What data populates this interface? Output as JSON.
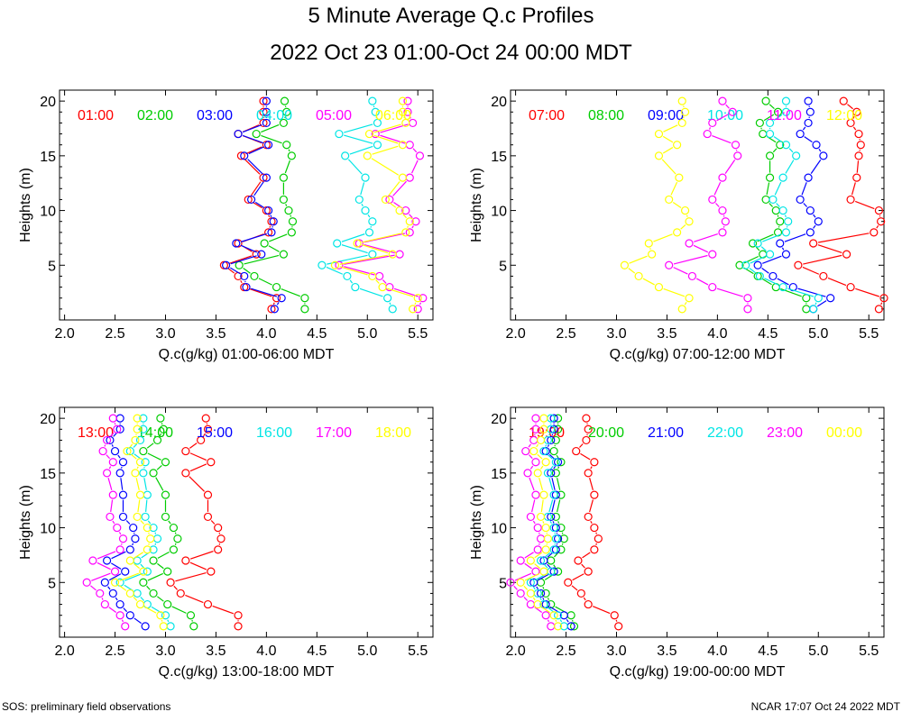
{
  "title": "5 Minute Average Q.c Profiles",
  "subtitle": "2022 Oct 23 01:00-Oct 24 00:00 MDT",
  "footer_left": "SOS: preliminary field observations",
  "footer_right": "NCAR 17:07 Oct 24 2022 MDT",
  "chart_data": {
    "type": "scatter",
    "ylabel": "Heights (m)",
    "xlim": [
      1.95,
      5.65
    ],
    "ylim": [
      0,
      21
    ],
    "xticks": [
      "2.0",
      "2.5",
      "3.0",
      "3.5",
      "4.0",
      "4.5",
      "5.0",
      "5.5"
    ],
    "yticks": [
      "5",
      "10",
      "15",
      "20"
    ],
    "heights": [
      1,
      2,
      3,
      4,
      5,
      6,
      7,
      8,
      9,
      10,
      11,
      13,
      15,
      16,
      17,
      18,
      19,
      20
    ],
    "colors": [
      "#ff0000",
      "#00cc00",
      "#0000ff",
      "#00e5e5",
      "#ff00ff",
      "#ffff00"
    ],
    "panels": [
      {
        "xlabel": "Q.c(g/kg) 01:00-06:00 MDT",
        "series": [
          {
            "name": "01:00",
            "values": [
              4.05,
              4.1,
              3.78,
              3.72,
              3.58,
              3.9,
              3.72,
              4.02,
              4.05,
              4.0,
              3.82,
              3.97,
              3.75,
              4.0,
              3.72,
              3.97,
              3.97,
              3.97
            ]
          },
          {
            "name": "02:00",
            "values": [
              4.38,
              4.38,
              4.1,
              3.88,
              3.73,
              4.17,
              3.98,
              4.25,
              4.26,
              4.22,
              4.17,
              4.17,
              4.25,
              4.2,
              3.9,
              4.17,
              4.2,
              4.18
            ]
          },
          {
            "name": "03:00",
            "values": [
              4.08,
              4.15,
              3.8,
              3.78,
              3.6,
              3.95,
              3.7,
              4.05,
              4.07,
              4.02,
              3.85,
              4.0,
              3.78,
              4.02,
              3.72,
              4.0,
              4.0,
              4.0
            ]
          },
          {
            "name": "04:00",
            "values": [
              5.25,
              5.2,
              4.88,
              4.8,
              4.55,
              5.05,
              4.7,
              5.02,
              5.05,
              4.98,
              4.92,
              4.98,
              4.78,
              5.1,
              4.72,
              5.1,
              5.08,
              5.05
            ]
          },
          {
            "name": "05:00",
            "values": [
              5.5,
              5.55,
              5.22,
              5.12,
              4.72,
              5.32,
              4.92,
              5.42,
              5.48,
              5.38,
              5.22,
              5.42,
              5.52,
              5.42,
              5.08,
              5.45,
              5.4,
              5.4
            ]
          },
          {
            "name": "06:00",
            "values": [
              5.45,
              5.5,
              5.15,
              5.05,
              4.68,
              5.25,
              4.9,
              5.38,
              5.42,
              5.32,
              5.18,
              5.35,
              5.0,
              5.35,
              5.02,
              5.38,
              5.35,
              5.35
            ]
          }
        ]
      },
      {
        "xlabel": "Q.c(g/kg) 07:00-12:00 MDT",
        "series": [
          {
            "name": "07:00",
            "values": [
              5.6,
              5.65,
              5.32,
              5.05,
              4.8,
              5.28,
              4.95,
              5.55,
              5.62,
              5.6,
              5.32,
              5.38,
              5.4,
              5.42,
              5.4,
              5.32,
              5.38,
              5.25
            ]
          },
          {
            "name": "08:00",
            "values": [
              4.88,
              4.88,
              4.58,
              4.4,
              4.22,
              4.45,
              4.35,
              4.6,
              4.62,
              4.58,
              4.48,
              4.52,
              4.52,
              4.62,
              4.45,
              4.42,
              4.6,
              4.48
            ]
          },
          {
            "name": "09:00",
            "values": [
              4.95,
              5.12,
              4.75,
              4.55,
              4.4,
              4.68,
              4.62,
              4.92,
              5.0,
              4.92,
              4.82,
              4.9,
              5.05,
              4.98,
              4.82,
              4.9,
              4.92,
              4.9
            ]
          },
          {
            "name": "10:00",
            "values": [
              4.95,
              5.0,
              4.65,
              4.42,
              4.28,
              4.52,
              4.4,
              4.68,
              4.7,
              4.65,
              4.55,
              4.65,
              4.78,
              4.68,
              4.52,
              4.52,
              4.68,
              4.68
            ]
          },
          {
            "name": "11:00",
            "values": [
              4.3,
              4.3,
              3.95,
              3.75,
              3.52,
              3.95,
              3.72,
              4.05,
              4.08,
              4.05,
              3.95,
              4.05,
              4.2,
              4.18,
              3.9,
              3.95,
              4.15,
              4.05
            ]
          },
          {
            "name": "12:00",
            "values": [
              3.65,
              3.72,
              3.42,
              3.22,
              3.08,
              3.35,
              3.32,
              3.6,
              3.72,
              3.68,
              3.52,
              3.62,
              3.42,
              3.6,
              3.42,
              3.65,
              3.68,
              3.65
            ]
          }
        ]
      },
      {
        "xlabel": "Q.c(g/kg) 13:00-18:00 MDT",
        "series": [
          {
            "name": "13:00",
            "values": [
              3.72,
              3.72,
              3.42,
              3.15,
              3.05,
              3.45,
              3.2,
              3.52,
              3.55,
              3.52,
              3.42,
              3.42,
              3.2,
              3.45,
              3.2,
              3.35,
              3.42,
              3.4
            ]
          },
          {
            "name": "14:00",
            "values": [
              3.28,
              3.25,
              3.02,
              2.88,
              2.78,
              3.02,
              2.88,
              3.08,
              3.12,
              3.08,
              3.0,
              3.0,
              2.88,
              3.0,
              2.78,
              2.92,
              2.98,
              2.95
            ]
          },
          {
            "name": "15:00",
            "values": [
              2.8,
              2.65,
              2.55,
              2.48,
              2.4,
              2.6,
              2.42,
              2.65,
              2.7,
              2.68,
              2.58,
              2.58,
              2.55,
              2.58,
              2.5,
              2.45,
              2.55,
              2.55
            ]
          },
          {
            "name": "16:00",
            "values": [
              3.05,
              3.0,
              2.82,
              2.72,
              2.55,
              2.82,
              2.72,
              2.88,
              2.92,
              2.88,
              2.8,
              2.82,
              2.78,
              2.8,
              2.65,
              2.75,
              2.78,
              2.78
            ]
          },
          {
            "name": "17:00",
            "values": [
              2.6,
              2.55,
              2.4,
              2.35,
              2.22,
              2.5,
              2.28,
              2.55,
              2.58,
              2.52,
              2.45,
              2.48,
              2.42,
              2.48,
              2.38,
              2.42,
              2.52,
              2.48
            ]
          },
          {
            "name": "18:00",
            "values": [
              2.98,
              2.95,
              2.75,
              2.65,
              2.5,
              2.78,
              2.65,
              2.82,
              2.85,
              2.82,
              2.72,
              2.75,
              2.7,
              2.75,
              2.62,
              2.7,
              2.72,
              2.72
            ]
          }
        ]
      },
      {
        "xlabel": "Q.c(g/kg) 19:00-00:00 MDT",
        "series": [
          {
            "name": "19:00",
            "values": [
              3.02,
              2.98,
              2.72,
              2.65,
              2.52,
              2.72,
              2.62,
              2.78,
              2.82,
              2.78,
              2.72,
              2.78,
              2.72,
              2.78,
              2.6,
              2.7,
              2.72,
              2.7
            ]
          },
          {
            "name": "20:00",
            "values": [
              2.58,
              2.55,
              2.35,
              2.3,
              2.25,
              2.42,
              2.35,
              2.45,
              2.48,
              2.45,
              2.4,
              2.45,
              2.4,
              2.45,
              2.38,
              2.4,
              2.42,
              2.42
            ]
          },
          {
            "name": "21:00",
            "values": [
              2.55,
              2.48,
              2.3,
              2.25,
              2.18,
              2.38,
              2.28,
              2.4,
              2.42,
              2.4,
              2.35,
              2.4,
              2.35,
              2.42,
              2.3,
              2.35,
              2.38,
              2.38
            ]
          },
          {
            "name": "22:00",
            "values": [
              2.48,
              2.42,
              2.28,
              2.22,
              2.15,
              2.35,
              2.25,
              2.38,
              2.4,
              2.38,
              2.32,
              2.38,
              2.32,
              2.4,
              2.28,
              2.32,
              2.35,
              2.35
            ]
          },
          {
            "name": "23:00",
            "values": [
              2.35,
              2.3,
              2.15,
              2.05,
              1.95,
              2.2,
              2.05,
              2.22,
              2.25,
              2.22,
              2.15,
              2.2,
              2.12,
              2.2,
              2.1,
              2.18,
              2.2,
              2.2
            ]
          },
          {
            "name": "00:00",
            "values": [
              2.42,
              2.38,
              2.22,
              2.15,
              2.05,
              2.28,
              2.15,
              2.3,
              2.32,
              2.3,
              2.25,
              2.28,
              2.22,
              2.3,
              2.18,
              2.25,
              2.28,
              2.28
            ]
          }
        ]
      }
    ]
  }
}
